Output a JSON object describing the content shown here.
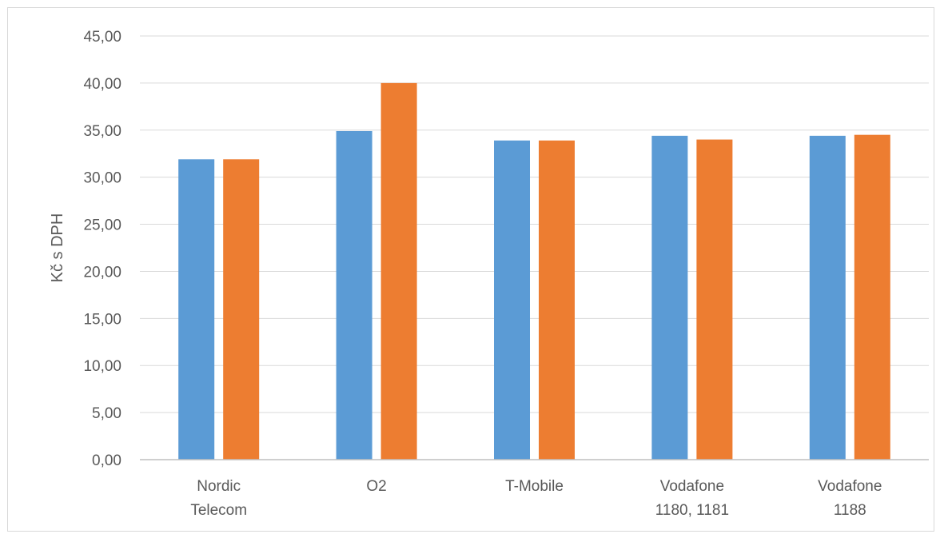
{
  "chart_data": {
    "type": "bar",
    "categories": [
      [
        "Nordic",
        "Telecom"
      ],
      [
        "O2"
      ],
      [
        "T-Mobile"
      ],
      [
        "Vodafone",
        "1180, 1181"
      ],
      [
        "Vodafone",
        "1188"
      ]
    ],
    "series": [
      {
        "color": "#5b9bd5",
        "values": [
          31.9,
          34.9,
          33.9,
          34.4,
          34.4
        ]
      },
      {
        "color": "#ed7d31",
        "values": [
          31.9,
          40.0,
          33.9,
          34.0,
          34.5
        ]
      }
    ],
    "xlabel": "",
    "ylabel": "Kč s DPH",
    "ylim": [
      0,
      45
    ],
    "yticks": [
      "0,00",
      "5,00",
      "10,00",
      "15,00",
      "20,00",
      "25,00",
      "30,00",
      "35,00",
      "40,00",
      "45,00"
    ],
    "grid": true,
    "legend": "none"
  }
}
